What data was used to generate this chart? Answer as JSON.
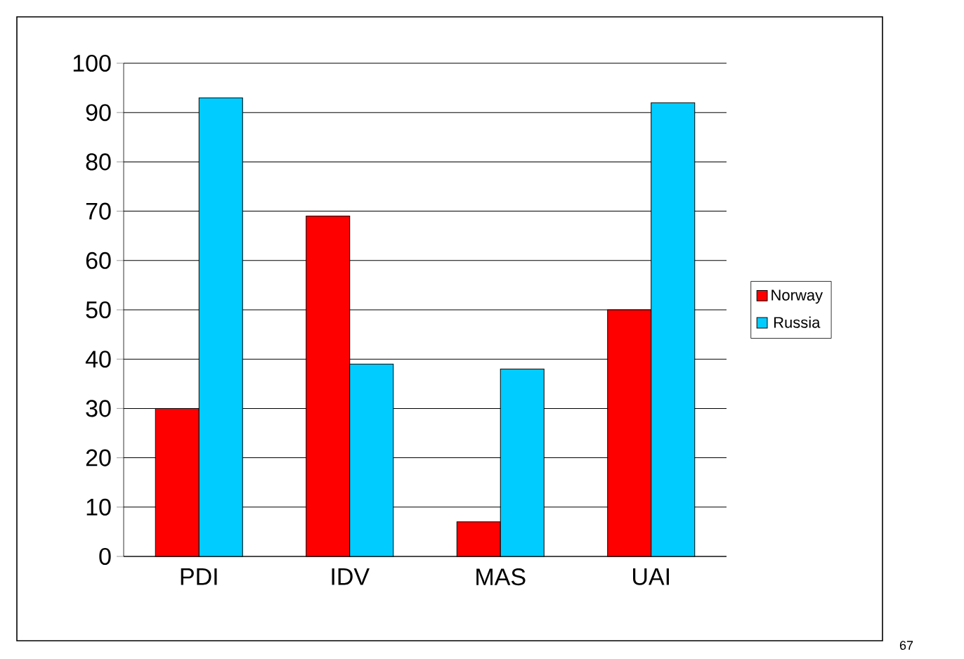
{
  "chart_data": {
    "type": "bar",
    "categories": [
      "PDI",
      "IDV",
      "MAS",
      "UAI"
    ],
    "series": [
      {
        "name": "Norway",
        "color": "#ff0000",
        "values": [
          30,
          69,
          7,
          50
        ]
      },
      {
        "name": "Russia",
        "color": "#00ccff",
        "values": [
          93,
          39,
          38,
          92
        ]
      }
    ],
    "ylim": [
      0,
      100
    ],
    "yticks": [
      0,
      10,
      20,
      30,
      40,
      50,
      60,
      70,
      80,
      90,
      100
    ],
    "grid": "y",
    "legend": "right",
    "annotations": [
      "67"
    ]
  }
}
